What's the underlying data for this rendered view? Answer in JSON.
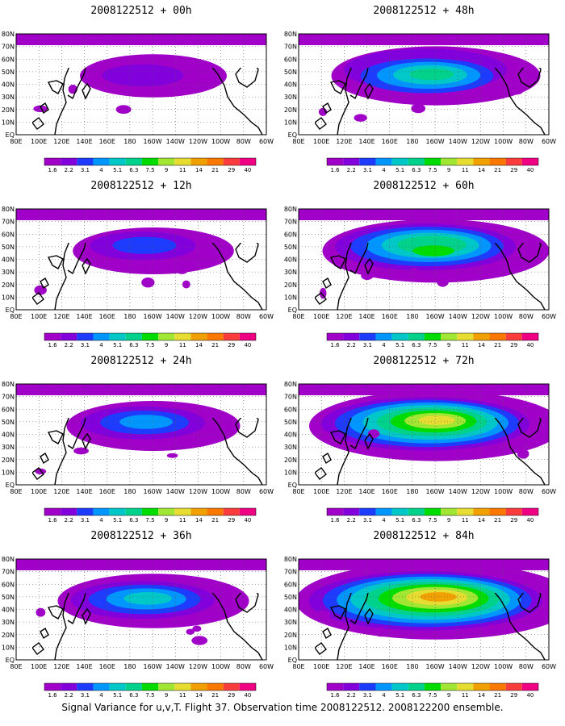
{
  "caption": "Signal Variance for u,v,T. Flight 37. Observation time 2008122512. 2008122200 ensemble.",
  "colorbar": {
    "levels": [
      "1.6",
      "2.2",
      "3.1",
      "4",
      "5.1",
      "6.3",
      "7.5",
      "9",
      "11",
      "14",
      "21",
      "29",
      "40"
    ],
    "colors": [
      "#a000c8",
      "#8200dc",
      "#1e3cff",
      "#0096ff",
      "#00c8c8",
      "#00d28c",
      "#00dc00",
      "#a0e632",
      "#e6dc32",
      "#f0a000",
      "#fa7800",
      "#fa3c3c",
      "#f00082"
    ]
  },
  "axis": {
    "lon_labels": [
      "80E",
      "100E",
      "120E",
      "140E",
      "160E",
      "180",
      "160W",
      "140W",
      "120W",
      "100W",
      "80W",
      "60W"
    ],
    "lat_labels": [
      "80N",
      "70N",
      "60N",
      "50N",
      "40N",
      "30N",
      "20N",
      "10N",
      "EQ"
    ]
  },
  "chart_data": [
    {
      "type": "heatmap",
      "title": "2008122512 + 00h",
      "field": "signal variance",
      "intensity": 0.1,
      "lon_range": [
        "80E",
        "60W"
      ],
      "lat_range": [
        "EQ",
        "80N"
      ],
      "colorbar": "1.6-40"
    },
    {
      "type": "heatmap",
      "title": "2008122512 + 48h",
      "field": "signal variance",
      "intensity": 0.45,
      "lon_range": [
        "80E",
        "60W"
      ],
      "lat_range": [
        "EQ",
        "80N"
      ],
      "colorbar": "1.6-40"
    },
    {
      "type": "heatmap",
      "title": "2008122512 + 12h",
      "field": "signal variance",
      "intensity": 0.18,
      "lon_range": [
        "80E",
        "60W"
      ],
      "lat_range": [
        "EQ",
        "80N"
      ],
      "colorbar": "1.6-40"
    },
    {
      "type": "heatmap",
      "title": "2008122512 + 60h",
      "field": "signal variance",
      "intensity": 0.55,
      "lon_range": [
        "80E",
        "60W"
      ],
      "lat_range": [
        "EQ",
        "80N"
      ],
      "colorbar": "1.6-40"
    },
    {
      "type": "heatmap",
      "title": "2008122512 + 24h",
      "field": "signal variance",
      "intensity": 0.25,
      "lon_range": [
        "80E",
        "60W"
      ],
      "lat_range": [
        "EQ",
        "80N"
      ],
      "colorbar": "1.6-40"
    },
    {
      "type": "heatmap",
      "title": "2008122512 + 72h",
      "field": "signal variance",
      "intensity": 0.7,
      "lon_range": [
        "80E",
        "60W"
      ],
      "lat_range": [
        "EQ",
        "80N"
      ],
      "colorbar": "1.6-40"
    },
    {
      "type": "heatmap",
      "title": "2008122512 + 36h",
      "field": "signal variance",
      "intensity": 0.35,
      "lon_range": [
        "80E",
        "60W"
      ],
      "lat_range": [
        "EQ",
        "80N"
      ],
      "colorbar": "1.6-40"
    },
    {
      "type": "heatmap",
      "title": "2008122512 + 84h",
      "field": "signal variance",
      "intensity": 0.85,
      "lon_range": [
        "80E",
        "60W"
      ],
      "lat_range": [
        "EQ",
        "80N"
      ],
      "colorbar": "1.6-40"
    }
  ]
}
